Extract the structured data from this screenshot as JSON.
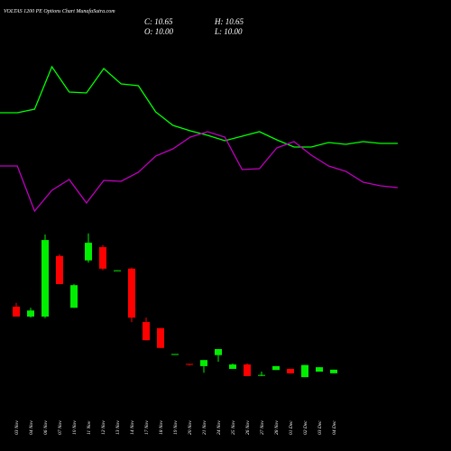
{
  "chart_data": [
    {
      "type": "line",
      "ylim": [
        0,
        100
      ],
      "series": [
        {
          "color": "#00ff00",
          "values": [
            67.5,
            67.5,
            69.5,
            93,
            79,
            78.5,
            92,
            83.5,
            82.5,
            68,
            60.5,
            57.5,
            55,
            52,
            54.5,
            57,
            52.5,
            48.5,
            48.5,
            51,
            50,
            51.5,
            50.5,
            50.5
          ]
        },
        {
          "color": "#c000c0",
          "values": [
            38,
            38,
            13,
            24.5,
            30.5,
            17.5,
            30,
            29.5,
            34.5,
            43.5,
            47.5,
            54,
            57,
            54,
            36,
            36.5,
            48,
            51.5,
            44,
            38,
            35,
            29,
            27,
            26
          ]
        }
      ]
    },
    {
      "type": "candlestick",
      "title": "VOLTAS 1200 PE Options Chart MunafaSutra.com",
      "header": {
        "close": "C: 10.65",
        "high": "H: 10.65",
        "open": "O: 10.00",
        "low": "L: 10.00"
      },
      "ylim": [
        8.5,
        37
      ],
      "up_color": "#00ee00",
      "down_color": "#ff0000",
      "categories": [
        "03 Nov",
        "04 Nov",
        "06 Nov",
        "07 Nov",
        "10 Nov",
        "11 Nov",
        "12 Nov",
        "13 Nov",
        "14 Nov",
        "17 Nov",
        "18 Nov",
        "19 Nov",
        "20 Nov",
        "21 Nov",
        "24 Nov",
        "25 Nov",
        "26 Nov",
        "27 Nov",
        "28 Nov",
        "01 Dec",
        "02 Dec",
        "03 Dec",
        "04 Dec"
      ],
      "open": [
        22.1,
        20.3,
        20.3,
        31.3,
        21.9,
        30.5,
        32.9,
        28.6,
        29.0,
        19.3,
        18.2,
        13.4,
        11.7,
        11.3,
        13.3,
        10.8,
        11.6,
        9.6,
        10.6,
        10.8,
        9.3,
        10.3,
        10.0
      ],
      "high": [
        22.8,
        21.9,
        35.2,
        31.6,
        26.2,
        35.4,
        33.3,
        28.7,
        29.2,
        20.1,
        18.2,
        13.5,
        11.7,
        12.4,
        14.4,
        11.8,
        11.8,
        10.3,
        11.3,
        10.8,
        11.5,
        11.1,
        10.65
      ],
      "low": [
        20.3,
        20.1,
        20.0,
        26.2,
        21.9,
        30.1,
        28.7,
        28.6,
        19.3,
        16.0,
        14.6,
        13.4,
        11.4,
        10.1,
        12.1,
        10.8,
        9.5,
        9.5,
        10.6,
        10.0,
        9.3,
        10.3,
        10.0
      ],
      "close": [
        20.3,
        21.4,
        34.2,
        26.2,
        26.0,
        33.7,
        29.0,
        28.7,
        20.1,
        16.0,
        14.6,
        13.5,
        11.6,
        12.4,
        14.4,
        11.6,
        9.5,
        9.7,
        11.3,
        10.0,
        11.5,
        11.1,
        10.65
      ]
    }
  ]
}
